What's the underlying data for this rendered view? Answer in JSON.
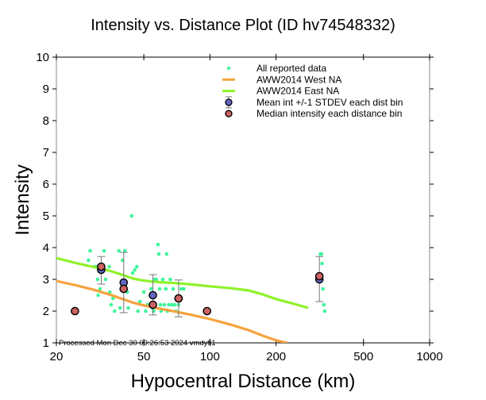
{
  "chart_data": {
    "type": "scatter",
    "title": "Intensity vs. Distance Plot (ID hv74548332)",
    "xlabel": "Hypocentral Distance (km)",
    "ylabel": "Intensity",
    "xscale": "log",
    "xlim": [
      20,
      1000
    ],
    "ylim": [
      1,
      10
    ],
    "xticks": [
      20,
      50,
      100,
      200,
      500,
      1000
    ],
    "xtick_labels": [
      "20",
      "50",
      "100",
      "200",
      "500",
      "1000"
    ],
    "yticks": [
      1,
      2,
      3,
      4,
      5,
      6,
      7,
      8,
      9,
      10
    ],
    "ytick_labels": [
      "1",
      "2",
      "3",
      "4",
      "5",
      "6",
      "7",
      "8",
      "9",
      "10"
    ],
    "grid": false,
    "legend_position": "top-right",
    "legend": [
      {
        "label": "All reported data",
        "kind": "dot",
        "color": "#3ef59a"
      },
      {
        "label": "AWW2014 West NA",
        "kind": "line",
        "color": "#f7a23c"
      },
      {
        "label": "AWW2014 East NA",
        "kind": "line",
        "color": "#8ef22a"
      },
      {
        "label": "Mean int +/-1 STDEV each dist bin",
        "kind": "mean",
        "color": "#6466c4"
      },
      {
        "label": "Median intensity each distance bin",
        "kind": "median",
        "color": "#cb6161"
      }
    ],
    "footer": "Processed Mon Dec 30 09:26:53 2024 vmdyfi1",
    "series": [
      {
        "name": "All reported data",
        "points": [
          [
            24.3,
            2.0
          ],
          [
            28.0,
            3.6
          ],
          [
            28.5,
            3.9
          ],
          [
            29.8,
            3.4
          ],
          [
            30.3,
            3.4
          ],
          [
            30.8,
            3.0
          ],
          [
            31.0,
            2.5
          ],
          [
            31.6,
            2.7
          ],
          [
            33.0,
            3.9
          ],
          [
            33.5,
            3.0
          ],
          [
            34.8,
            3.4
          ],
          [
            35.0,
            2.6
          ],
          [
            35.5,
            2.2
          ],
          [
            36.2,
            2.4
          ],
          [
            36.8,
            2.0
          ],
          [
            38.5,
            3.9
          ],
          [
            39.0,
            2.1
          ],
          [
            40.0,
            3.6
          ],
          [
            41.0,
            3.9
          ],
          [
            42.0,
            2.6
          ],
          [
            42.5,
            2.1
          ],
          [
            44.0,
            5.0
          ],
          [
            44.5,
            3.2
          ],
          [
            45.5,
            3.3
          ],
          [
            46.5,
            3.4
          ],
          [
            47.0,
            2.0
          ],
          [
            48.0,
            2.3
          ],
          [
            50.0,
            2.6
          ],
          [
            51.0,
            2.0
          ],
          [
            52.0,
            2.2
          ],
          [
            54.0,
            2.7
          ],
          [
            54.8,
            2.1
          ],
          [
            55.5,
            2.0
          ],
          [
            56.0,
            3.0
          ],
          [
            57.0,
            3.0
          ],
          [
            58.0,
            4.1
          ],
          [
            58.5,
            3.8
          ],
          [
            59.0,
            2.7
          ],
          [
            59.5,
            2.2
          ],
          [
            60.0,
            2.0
          ],
          [
            61.0,
            3.0
          ],
          [
            62.0,
            2.2
          ],
          [
            63.0,
            2.7
          ],
          [
            63.5,
            3.8
          ],
          [
            64.0,
            2.0
          ],
          [
            65.0,
            2.2
          ],
          [
            66.0,
            3.0
          ],
          [
            67.0,
            2.2
          ],
          [
            68.0,
            2.7
          ],
          [
            69.0,
            2.2
          ],
          [
            70.0,
            2.0
          ],
          [
            72.0,
            2.2
          ],
          [
            74.0,
            2.7
          ],
          [
            76.0,
            2.7
          ],
          [
            318.0,
            3.8
          ],
          [
            322.0,
            3.8
          ],
          [
            324.0,
            3.5
          ],
          [
            327.0,
            2.7
          ],
          [
            330.0,
            2.2
          ],
          [
            333.0,
            2.0
          ]
        ]
      },
      {
        "name": "AWW2014 West NA",
        "x": [
          20,
          25,
          30,
          35,
          40,
          45,
          50,
          55,
          60,
          70,
          80,
          100,
          125,
          150,
          175,
          200,
          225
        ],
        "y": [
          2.95,
          2.8,
          2.66,
          2.52,
          2.38,
          2.26,
          2.18,
          2.12,
          2.07,
          1.98,
          1.9,
          1.75,
          1.57,
          1.4,
          1.22,
          1.08,
          1.0
        ]
      },
      {
        "name": "AWW2014 East NA",
        "x": [
          20,
          25,
          30,
          35,
          40,
          45,
          50,
          55,
          60,
          70,
          80,
          100,
          125,
          150,
          175,
          200,
          250,
          280
        ],
        "y": [
          3.67,
          3.5,
          3.38,
          3.27,
          3.14,
          3.02,
          2.96,
          2.93,
          2.91,
          2.88,
          2.85,
          2.78,
          2.72,
          2.65,
          2.52,
          2.38,
          2.2,
          2.1
        ]
      },
      {
        "name": "Mean int +/-1 STDEV each dist bin",
        "points": [
          {
            "x": 32.0,
            "mean": 3.3,
            "lo": 2.85,
            "hi": 3.72
          },
          {
            "x": 40.5,
            "mean": 2.9,
            "lo": 1.95,
            "hi": 3.85
          },
          {
            "x": 55.0,
            "mean": 2.5,
            "lo": 1.88,
            "hi": 3.15
          },
          {
            "x": 72.0,
            "mean": 2.4,
            "lo": 1.82,
            "hi": 2.98
          },
          {
            "x": 315.0,
            "mean": 3.0,
            "lo": 2.3,
            "hi": 3.72
          }
        ]
      },
      {
        "name": "Median intensity each distance bin",
        "points": [
          [
            24.3,
            2.0
          ],
          [
            32.0,
            3.4
          ],
          [
            40.5,
            2.7
          ],
          [
            55.0,
            2.2
          ],
          [
            72.0,
            2.4
          ],
          [
            97.0,
            2.0
          ],
          [
            315.0,
            3.1
          ]
        ]
      }
    ]
  }
}
